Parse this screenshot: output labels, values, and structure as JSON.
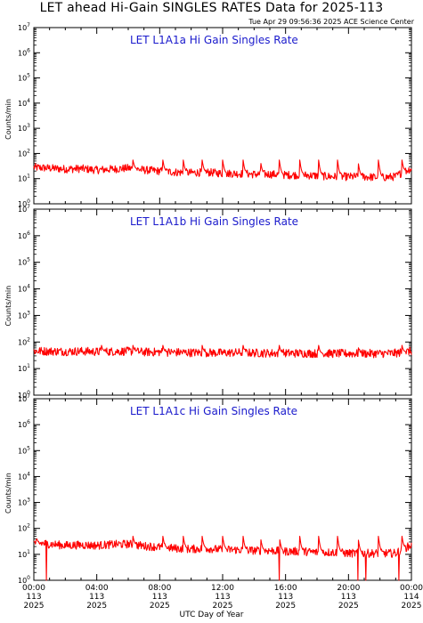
{
  "header": {
    "title": "LET ahead Hi-Gain SINGLES RATES Data for 2025-113",
    "timestamp": "Tue Apr 29 09:56:36 2025 ACE Science Center"
  },
  "x_axis": {
    "title": "UTC Day of Year",
    "ticks": [
      {
        "time": "00:00",
        "doy": "113",
        "year": "2025"
      },
      {
        "time": "04:00",
        "doy": "113",
        "year": "2025"
      },
      {
        "time": "08:00",
        "doy": "113",
        "year": "2025"
      },
      {
        "time": "12:00",
        "doy": "113",
        "year": "2025"
      },
      {
        "time": "16:00",
        "doy": "113",
        "year": "2025"
      },
      {
        "time": "20:00",
        "doy": "113",
        "year": "2025"
      },
      {
        "time": "00:00",
        "doy": "114",
        "year": "2025"
      }
    ]
  },
  "colors": {
    "series": "#ff0000",
    "panel_title": "#1a1acc",
    "axes": "#000000"
  },
  "chart_data": [
    {
      "type": "line",
      "title": "LET L1A1a Hi Gain Singles Rate",
      "ylabel": "Counts/min",
      "yscale": "log",
      "ylim": [
        1,
        10000000
      ],
      "y_tick_labels": [
        "10^0",
        "10^1",
        "10^2",
        "10^3",
        "10^4",
        "10^5",
        "10^6",
        "10^7"
      ],
      "xlim_hours": [
        0,
        24
      ],
      "x": [
        0,
        1,
        2,
        3,
        4,
        5,
        6,
        7,
        8,
        9,
        10,
        11,
        12,
        13,
        14,
        15,
        16,
        17,
        18,
        19,
        20,
        21,
        22,
        23,
        24
      ],
      "series": [
        {
          "values": [
            28,
            26,
            24,
            25,
            22,
            24,
            26,
            22,
            20,
            18,
            17,
            18,
            16,
            16,
            15,
            15,
            14,
            14,
            13,
            12,
            12,
            12,
            11,
            12,
            25
          ]
        }
      ],
      "spikes_hours": [
        6.3,
        8.2,
        9.5,
        10.7,
        12.0,
        13.3,
        14.4,
        15.6,
        16.9,
        18.1,
        19.3,
        20.6,
        21.9,
        23.4
      ],
      "spike_peak": 55
    },
    {
      "type": "line",
      "title": "LET L1A1b Hi Gain Singles Rate",
      "ylabel": "Counts/min",
      "yscale": "log",
      "ylim": [
        1,
        10000000
      ],
      "y_tick_labels": [
        "10^0",
        "10^1",
        "10^2",
        "10^3",
        "10^4",
        "10^5",
        "10^6",
        "10^7"
      ],
      "xlim_hours": [
        0,
        24
      ],
      "x": [
        0,
        1,
        2,
        3,
        4,
        5,
        6,
        7,
        8,
        9,
        10,
        11,
        12,
        13,
        14,
        15,
        16,
        17,
        18,
        19,
        20,
        21,
        22,
        23,
        24
      ],
      "series": [
        {
          "values": [
            46,
            45,
            44,
            45,
            43,
            44,
            45,
            42,
            42,
            41,
            40,
            40,
            39,
            40,
            39,
            38,
            38,
            38,
            37,
            37,
            37,
            37,
            37,
            38,
            45
          ]
        }
      ],
      "spikes_hours": [
        4.3,
        6.3,
        8.2,
        10.7,
        13.3,
        15.6,
        18.1,
        20.6,
        23.4
      ],
      "spike_peak": 75
    },
    {
      "type": "line",
      "title": "LET L1A1c Hi Gain Singles Rate",
      "ylabel": "Counts/min",
      "yscale": "log",
      "ylim": [
        1,
        10000000
      ],
      "y_tick_labels": [
        "10^0",
        "10^1",
        "10^2",
        "10^3",
        "10^4",
        "10^5",
        "10^6",
        "10^7"
      ],
      "xlim_hours": [
        0,
        24
      ],
      "x": [
        0,
        1,
        2,
        3,
        4,
        5,
        6,
        7,
        8,
        9,
        10,
        11,
        12,
        13,
        14,
        15,
        16,
        17,
        18,
        19,
        20,
        21,
        22,
        23,
        24
      ],
      "series": [
        {
          "values": [
            28,
            25,
            22,
            23,
            22,
            24,
            25,
            21,
            19,
            17,
            16,
            17,
            15,
            15,
            14,
            14,
            13,
            13,
            12,
            12,
            11,
            11,
            11,
            11,
            22
          ]
        }
      ],
      "spikes_hours": [
        6.3,
        8.2,
        9.5,
        10.7,
        12.0,
        13.3,
        14.4,
        15.6,
        16.9,
        18.1,
        19.3,
        20.6,
        21.9,
        23.4
      ],
      "spike_peak": 50,
      "dips_hours": [
        0.8,
        15.6,
        20.6,
        21.1,
        23.2
      ],
      "dip_min": 1.0
    }
  ]
}
